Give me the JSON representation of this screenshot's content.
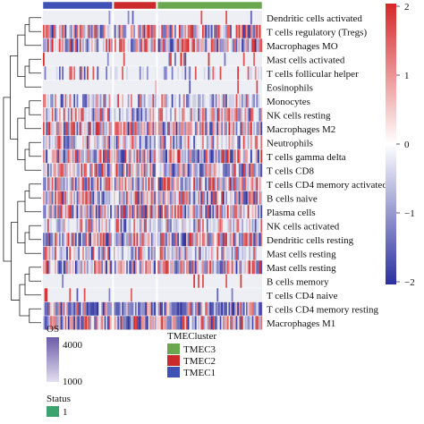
{
  "chart_data": {
    "type": "heatmap",
    "rows": [
      "Dendritic cells activated",
      "T cells regulatory (Tregs)",
      "Macrophages MO",
      "Mast cells activated",
      "T cells follicular helper",
      "Eosinophils",
      "Monocytes",
      "NK cells resting",
      "Macrophages M2",
      "Neutrophils",
      "T cells gamma delta",
      "T cells CD8",
      "T cells CD4 memory activated",
      "B cells naive",
      "Plasma cells",
      "NK cells activated",
      "Dendritic cells resting",
      "Mast cells resting",
      "Mast cells resting",
      "B cells memory",
      "T cells CD4 naive",
      "T cells CD4 memory resting",
      "Macrophages M1"
    ],
    "row_pattern": [
      "very_sparse",
      "dense",
      "dense",
      "very_sparse",
      "sparse",
      "very_sparse",
      "medium",
      "medium",
      "dense",
      "medium",
      "dense",
      "dense",
      "dense",
      "dense",
      "dense",
      "medium",
      "dense",
      "medium",
      "dense",
      "very_sparse",
      "very_sparse",
      "dense_blue",
      "dense"
    ],
    "clusters": [
      {
        "name": "TMEC3",
        "color": "#6aa84f",
        "order": 3
      },
      {
        "name": "TMEC2",
        "color": "#cc2a2a",
        "order": 1
      },
      {
        "name": "TMEC1",
        "color": "#3f51b5",
        "order": 2
      }
    ],
    "column_groups": [
      {
        "cluster": "TMEC1",
        "columns": 48
      },
      {
        "cluster": "TMEC2",
        "columns": 30
      },
      {
        "cluster": "TMEC3",
        "columns": 72
      }
    ],
    "colorbar": {
      "min": -2,
      "max": 2,
      "ticks": [
        "2",
        "1",
        "0",
        "−1",
        "−2"
      ],
      "colors": [
        "#2b2f9e",
        "#ffffff",
        "#d62728"
      ]
    },
    "annotation_legends": {
      "os": {
        "title": "OS",
        "labels": [
          "4000",
          "1000"
        ],
        "colors": [
          "#6c5ba8",
          "#e3e0f0"
        ]
      },
      "tme": {
        "title": "TMECluster",
        "labels": [
          "TMEC3",
          "TMEC2",
          "TMEC1"
        ]
      },
      "status": {
        "title": "Status",
        "labels": [
          "1"
        ],
        "color": "#3aa36f"
      }
    }
  }
}
